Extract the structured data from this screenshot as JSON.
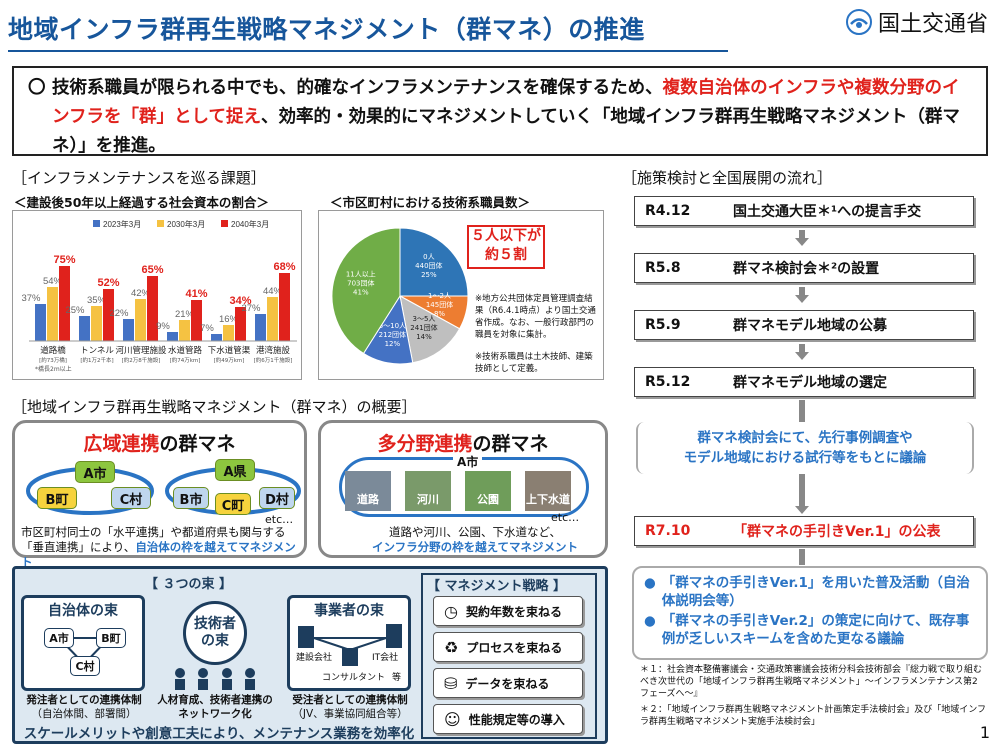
{
  "header": {
    "title": "地域インフラ群再生戦略マネジメント（群マネ）の推進",
    "ministry": "国土交通省"
  },
  "intro": {
    "bullet": "〇",
    "text_a": "技術系職員が限られる中でも、的確なインフラメンテナンスを確保するため、",
    "text_b": "複数自治体のインフラや複数分野のインフラを「群」として捉え",
    "text_c": "、効率的・効果的にマネジメントしていく「地域インフラ群再生戦略マネジメント（群マネ）」を推進。"
  },
  "issues": {
    "section_title": "［インフラメンテナンスを巡る課題］",
    "chart1_title": "＜建設後50年以上経過する社会資本の割合＞",
    "chart2_title": "＜市区町村における技術系職員数＞",
    "callout": "５人以下が\n約５割",
    "notes": [
      "※地方公共団体定員管理調査結果（R6.4.1時点）より国土交通省作成。なお、一般行政部門の職員を対象に集計。",
      "※技術系職員は土木技師、建築技師として定義。"
    ]
  },
  "chart_data": [
    {
      "type": "bar",
      "categories": [
        "道路橋",
        "トンネル",
        "河川管理施設",
        "水道管路",
        "下水道管渠",
        "港湾施設"
      ],
      "category_subs": [
        "[約73万橋]",
        "[約1万2千本]",
        "[約2万8千施設]",
        "[約74万km]",
        "[約49万km]",
        "[約6万1千施設]"
      ],
      "footnote": "*橋長2m以上",
      "series": [
        {
          "name": "2023年3月",
          "color": "#4472c4",
          "values": [
            37,
            25,
            22,
            9,
            7,
            27
          ]
        },
        {
          "name": "2030年3月",
          "color": "#f5c242",
          "values": [
            54,
            35,
            42,
            21,
            16,
            44
          ]
        },
        {
          "name": "2040年3月",
          "color": "#e0221c",
          "values": [
            75,
            52,
            65,
            41,
            34,
            68
          ]
        }
      ],
      "ylim": [
        0,
        100
      ]
    },
    {
      "type": "pie",
      "slices": [
        {
          "label": "0人",
          "count": "440団体",
          "pct": "25%",
          "value": 25,
          "color": "#2e75b6"
        },
        {
          "label": "1〜2人",
          "count": "145団体",
          "pct": "8%",
          "value": 8,
          "color": "#ed7d31"
        },
        {
          "label": "3〜5人",
          "count": "241団体",
          "pct": "14%",
          "value": 14,
          "color": "#bfbfbf"
        },
        {
          "label": "6〜10人",
          "count": "212団体",
          "pct": "12%",
          "value": 12,
          "color": "#4472c4"
        },
        {
          "label": "11人以上",
          "count": "703団体",
          "pct": "41%",
          "value": 41,
          "color": "#70ad47"
        }
      ]
    }
  ],
  "overview": {
    "section_title": "［地域インフラ群再生戦略マネジメント（群マネ）の概要］",
    "wide": {
      "title_red": "広域連携",
      "title_black": "の群マネ",
      "nodes_a": [
        "A市",
        "B町",
        "C村"
      ],
      "nodes_b": [
        "A県",
        "B市",
        "C町",
        "D村"
      ],
      "etc": "etc…",
      "desc_a": "市区町村同士の「水平連携」や都道府県も関与する",
      "desc_b": "「垂直連携」により、",
      "desc_c": "自治体の枠を越えてマネジメント"
    },
    "multi": {
      "title_red": "多分野連携",
      "title_black": "の群マネ",
      "city": "A市",
      "photos": [
        "道路",
        "河川",
        "公園",
        "上下水道"
      ],
      "etc": "etc…",
      "desc_a": "道路や河川、公園、下水道など、",
      "desc_b": "インフラ分野の枠を越えてマネジメント"
    }
  },
  "bundles": {
    "title": "【 ３つの束 】",
    "local": {
      "title": "自治体の束",
      "nodes": [
        "A市",
        "B町",
        "C村"
      ],
      "caption": "発注者としての連携体制",
      "sub": "（自治体間、部署間）"
    },
    "engineer": {
      "title_a": "技術者",
      "title_b": "の束",
      "caption_a": "人材育成、技術者連携の",
      "caption_b": "ネットワーク化"
    },
    "business": {
      "title": "事業者の束",
      "labels": [
        "建設会社",
        "IT会社",
        "コンサルタント",
        "等"
      ],
      "caption": "受注者としての連携体制",
      "sub": "（JV、事業協同組合等）"
    },
    "footer": "スケールメリットや創意工夫により、メンテナンス業務を効率化"
  },
  "management": {
    "title": "【 マネジメント戦略 】",
    "items": [
      {
        "icon": "clock-icon",
        "label": "契約年数を束ねる"
      },
      {
        "icon": "recycle-icon",
        "label": "プロセスを束ねる"
      },
      {
        "icon": "database-icon",
        "label": "データを束ねる"
      },
      {
        "icon": "user-idea-icon",
        "label": "性能規定等の導入"
      }
    ]
  },
  "flow": {
    "section_title": "［施策検討と全国展開の流れ］",
    "steps": [
      {
        "date": "R4.12",
        "text": "国土交通大臣＊¹への提言手交"
      },
      {
        "date": "R5.8",
        "text": "群マネ検討会＊²の設置"
      },
      {
        "date": "R5.9",
        "text": "群マネモデル地域の公募"
      },
      {
        "date": "R5.12",
        "text": "群マネモデル地域の選定"
      }
    ],
    "discussion": "群マネ検討会にて、先行事例調査や\nモデル地域における試行等をもとに議論",
    "final": {
      "date": "R7.10",
      "text": "「群マネの手引きVer.1」の公表"
    },
    "bullets": [
      "「群マネの手引きVer.1」を用いた普及活動（自治体説明会等）",
      "「群マネの手引きVer.2」の策定に向けて、既存事例が乏しいスキームを含めた更なる議論"
    ],
    "footnotes": [
      "＊１：社会資本整備審議会・交通政策審議会技術分科会技術部会『総力戦で取り組むべき次世代の「地域インフラ群再生戦略マネジメント」〜インフラメンテナンス第2フェーズへ〜』",
      "＊２：「地域インフラ群再生戦略マネジメント計画策定手法検討会」及び「地域インフラ群再生戦略マネジメント実施手法検討会」"
    ]
  },
  "page_number": "1"
}
